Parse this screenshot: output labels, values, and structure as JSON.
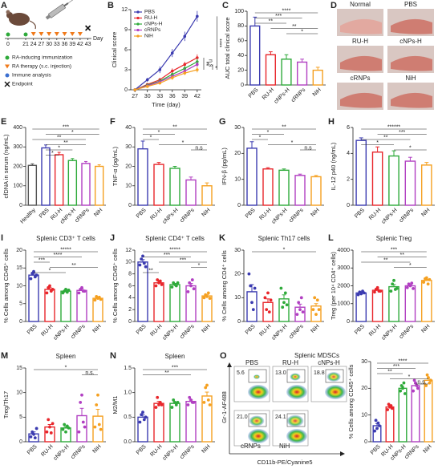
{
  "timeline": {
    "panel": "A",
    "days": [
      0,
      21,
      24,
      27,
      30,
      33,
      36,
      39,
      42,
      43
    ],
    "day_label": "Day",
    "legend": [
      "RA-inducing immunization",
      "RA therapy (s.c. injection)",
      "Immune analysis",
      "Endpoint"
    ]
  },
  "photos": {
    "panel": "D",
    "labels": [
      "Normal",
      "PBS",
      "RU-H",
      "cNPs-H",
      "cRNPs",
      "NiH"
    ]
  },
  "flow": {
    "panel": "O",
    "title": "Splenic MDSCs",
    "ylabel": "Gr-1-AF488",
    "xlabel": "CD11b-PE/Cyanine5",
    "groups": [
      {
        "name": "PBS",
        "color": "#3b3bb0"
      },
      {
        "name": "RU-H",
        "color": "#e8262b"
      },
      {
        "name": "cNPs-H",
        "color": "#2eaa3a"
      },
      {
        "name": "cRNPs",
        "color": "#b13fc2"
      },
      {
        "name": "NiH",
        "color": "#f5a020"
      }
    ],
    "values": [
      5.6,
      13.0,
      18.8,
      21.0,
      24.1
    ],
    "value_labels": [
      "5.6",
      "13.0",
      "18.8",
      "21.0",
      "24.1"
    ]
  },
  "chart_data": [
    {
      "type": "line",
      "panel": "B",
      "ylabel": "Clinical score",
      "xlabel": "Time (day)",
      "x": [
        27,
        30,
        33,
        36,
        39,
        42
      ],
      "xlim": [
        26,
        43
      ],
      "xticks": [
        27,
        30,
        33,
        36,
        39,
        42
      ],
      "ylim": [
        0,
        12
      ],
      "yticks": [
        0,
        3,
        6,
        9,
        12
      ],
      "series": [
        {
          "name": "PBS",
          "color": "#3b3bb0",
          "values": [
            0,
            1.5,
            3,
            5.5,
            8,
            11
          ],
          "errors": [
            0,
            0.3,
            0.5,
            0.6,
            0.7,
            0.8
          ]
        },
        {
          "name": "RU-H",
          "color": "#e8262b",
          "values": [
            0,
            0.8,
            1.5,
            2.8,
            3.8,
            4.8
          ],
          "errors": [
            0,
            0.2,
            0.3,
            0.4,
            0.4,
            0.5
          ]
        },
        {
          "name": "cNPs-H",
          "color": "#2eaa3a",
          "values": [
            0,
            0.7,
            1.3,
            2.3,
            3.2,
            4.2
          ],
          "errors": [
            0,
            0.2,
            0.3,
            0.3,
            0.4,
            0.5
          ]
        },
        {
          "name": "cRNPs",
          "color": "#b13fc2",
          "values": [
            0,
            0.6,
            1.2,
            2,
            2.8,
            3.8
          ],
          "errors": [
            0,
            0.2,
            0.2,
            0.3,
            0.4,
            0.4
          ]
        },
        {
          "name": "NiH",
          "color": "#f5a020",
          "values": [
            0,
            0.5,
            1,
            1.8,
            2.5,
            3
          ],
          "errors": [
            0,
            0.2,
            0.2,
            0.3,
            0.3,
            0.4
          ]
        }
      ],
      "annotations": [
        "**",
        "n.s",
        "*",
        "****"
      ]
    },
    {
      "type": "bar",
      "panel": "C",
      "ylabel": "AUC total clinical score",
      "categories": [
        "PBS",
        "RU-H",
        "cNPs-H",
        "cRNPs",
        "NiH"
      ],
      "colors": [
        "#3b3bb0",
        "#e8262b",
        "#2eaa3a",
        "#b13fc2",
        "#f5a020"
      ],
      "values": [
        80,
        41,
        35,
        31,
        20
      ],
      "errors": [
        12,
        4,
        6,
        4,
        4
      ],
      "ylim": [
        0,
        100
      ],
      "yticks": [
        0,
        20,
        40,
        60,
        80,
        100
      ],
      "annotations": [
        "****",
        "***",
        "**",
        "**",
        "*"
      ]
    },
    {
      "type": "bar",
      "panel": "E",
      "ylabel": "cfDNA in serum (ng/mL)",
      "categories": [
        "Healthy",
        "PBS",
        "RU-H",
        "cNPs-H",
        "cRNPs",
        "NiH"
      ],
      "colors": [
        "#555555",
        "#3b3bb0",
        "#e8262b",
        "#2eaa3a",
        "#b13fc2",
        "#f5a020"
      ],
      "values": [
        205,
        295,
        260,
        230,
        215,
        200
      ],
      "errors": [
        8,
        15,
        12,
        10,
        10,
        8
      ],
      "ylim": [
        0,
        400
      ],
      "yticks": [
        0,
        100,
        200,
        300,
        400
      ],
      "annotations": [
        "***",
        "*",
        "**",
        "**",
        "*",
        "*"
      ]
    },
    {
      "type": "bar",
      "panel": "F",
      "ylabel": "TNF-α (pg/mL)",
      "categories": [
        "PBS",
        "RU-H",
        "cNPs-H",
        "cRNPs",
        "NiH"
      ],
      "colors": [
        "#3b3bb0",
        "#e8262b",
        "#2eaa3a",
        "#b13fc2",
        "#f5a020"
      ],
      "values": [
        29,
        21,
        19,
        13,
        10
      ],
      "errors": [
        4,
        1,
        1,
        1.5,
        1.5
      ],
      "ylim": [
        0,
        40
      ],
      "yticks": [
        0,
        10,
        20,
        30,
        40
      ],
      "annotations": [
        "**",
        "*",
        "*",
        "*",
        "n.s"
      ]
    },
    {
      "type": "bar",
      "panel": "G",
      "ylabel": "IFN-β (pg/mL)",
      "categories": [
        "PBS",
        "RU-H",
        "cNPs-H",
        "cRNPs",
        "NiH"
      ],
      "colors": [
        "#3b3bb0",
        "#e8262b",
        "#2eaa3a",
        "#b13fc2",
        "#f5a020"
      ],
      "values": [
        22,
        14,
        13.5,
        11.5,
        11
      ],
      "errors": [
        2.5,
        0.5,
        0.5,
        0.5,
        0.5
      ],
      "ylim": [
        0,
        30
      ],
      "yticks": [
        0,
        10,
        20,
        30
      ],
      "annotations": [
        "**",
        "*",
        "*",
        "*",
        "n.s"
      ]
    },
    {
      "type": "bar",
      "panel": "H",
      "ylabel": "IL-12 p40 (ng/mL)",
      "categories": [
        "PBS",
        "RU-H",
        "cNPs-H",
        "cRNPs",
        "NiH"
      ],
      "colors": [
        "#3b3bb0",
        "#e8262b",
        "#2eaa3a",
        "#b13fc2",
        "#f5a020"
      ],
      "values": [
        5,
        4.1,
        3.8,
        3.4,
        3.1
      ],
      "errors": [
        0.2,
        0.4,
        0.4,
        0.3,
        0.2
      ],
      "ylim": [
        0,
        6
      ],
      "yticks": [
        0,
        2,
        4,
        6
      ],
      "annotations": [
        "******",
        "***",
        "**",
        "*",
        "*"
      ]
    },
    {
      "type": "bar",
      "panel": "I",
      "title": "Splenic CD3⁺ T cells",
      "ylabel": "% Cells among CD45⁺ cells",
      "categories": [
        "PBS",
        "RU-H",
        "cNPs-H",
        "cRNPs",
        "NiH"
      ],
      "colors": [
        "#3b3bb0",
        "#e8262b",
        "#2eaa3a",
        "#b13fc2",
        "#f5a020"
      ],
      "values": [
        13,
        9,
        8.5,
        8.7,
        6.5
      ],
      "errors": [
        0.5,
        0.5,
        0.3,
        0.4,
        0.3
      ],
      "points": [
        [
          12,
          13.5,
          14,
          12.5,
          13
        ],
        [
          8,
          9.5,
          10,
          8.5,
          9
        ],
        [
          8,
          8.5,
          9,
          8.2,
          8.8
        ],
        [
          8,
          9,
          9.5,
          8.5,
          8.5
        ],
        [
          6,
          7,
          6.5,
          6.8,
          6.2
        ]
      ],
      "ylim": [
        0,
        20
      ],
      "yticks": [
        0,
        5,
        10,
        15,
        20
      ],
      "annotations": [
        "*****",
        "****",
        "***",
        "**",
        "*"
      ]
    },
    {
      "type": "bar",
      "panel": "J",
      "title": "Splenic CD4⁺ T cells",
      "ylabel": "% Cells among CD45⁺ cells",
      "categories": [
        "PBS",
        "RU-H",
        "cNPs-H",
        "cRNPs",
        "NiH"
      ],
      "colors": [
        "#3b3bb0",
        "#e8262b",
        "#2eaa3a",
        "#b13fc2",
        "#f5a020"
      ],
      "values": [
        10,
        6.5,
        6.2,
        6,
        4.3
      ],
      "errors": [
        0.4,
        0.3,
        0.2,
        0.4,
        0.2
      ],
      "points": [
        [
          9.5,
          10.5,
          11,
          9.8,
          9.2
        ],
        [
          6,
          7,
          6.5,
          6.8,
          6.2
        ],
        [
          5.8,
          6.5,
          6.2,
          6,
          6.5
        ],
        [
          5,
          6.5,
          6,
          7,
          5.5
        ],
        [
          4,
          4.5,
          4.2,
          4.8,
          3.9
        ]
      ],
      "ylim": [
        0,
        12
      ],
      "yticks": [
        0,
        2,
        4,
        6,
        8,
        10,
        12
      ],
      "annotations": [
        "*****",
        "***",
        "***",
        "*",
        "**"
      ]
    },
    {
      "type": "bar",
      "panel": "K",
      "title": "Splenic Th17 cells",
      "ylabel": "% Cells among CD4⁺ cells",
      "categories": [
        "PBS",
        "RU-H",
        "cNPs-H",
        "cRNPs",
        "NiH"
      ],
      "colors": [
        "#3b3bb0",
        "#e8262b",
        "#2eaa3a",
        "#b13fc2",
        "#f5a020"
      ],
      "values": [
        12.5,
        8,
        9.5,
        6,
        6.5
      ],
      "errors": [
        3,
        1.5,
        1.7,
        1.3,
        1
      ],
      "points": [
        [
          20,
          15,
          8,
          5,
          14
        ],
        [
          10,
          5,
          12,
          4,
          9
        ],
        [
          14,
          6,
          8,
          12,
          7
        ],
        [
          3,
          8,
          5,
          10,
          4
        ],
        [
          5,
          10,
          3,
          9,
          5
        ]
      ],
      "ylim": [
        0,
        30
      ],
      "yticks": [
        0,
        10,
        20,
        30
      ],
      "annotations": [
        "*"
      ]
    },
    {
      "type": "bar",
      "panel": "L",
      "title": "Splenic Treg",
      "ylabel": "Treg (per 10⁴ CD4⁺ cells)",
      "categories": [
        "PBS",
        "RU-H",
        "cNPs-H",
        "cRNPs",
        "NiH"
      ],
      "colors": [
        "#3b3bb0",
        "#e8262b",
        "#2eaa3a",
        "#b13fc2",
        "#f5a020"
      ],
      "values": [
        1600,
        1750,
        1950,
        2000,
        2300
      ],
      "errors": [
        60,
        50,
        120,
        60,
        60
      ],
      "points": [
        [
          1500,
          1650,
          1550,
          1700,
          1600
        ],
        [
          1650,
          1800,
          1900,
          1700,
          1700
        ],
        [
          1700,
          2100,
          2300,
          1800,
          1850
        ],
        [
          1900,
          2100,
          2000,
          2150,
          1850
        ],
        [
          2200,
          2400,
          2450,
          2100,
          2350
        ]
      ],
      "ylim": [
        0,
        4000
      ],
      "yticks": [
        0,
        1000,
        2000,
        3000,
        4000
      ],
      "annotations": [
        "***",
        "**",
        "**",
        "*"
      ]
    },
    {
      "type": "bar",
      "panel": "M",
      "title": "Spleen",
      "ylabel": "Treg/Th17",
      "categories": [
        "PBS",
        "RU-H",
        "cNPs-H",
        "cRNPs",
        "NiH"
      ],
      "colors": [
        "#3b3bb0",
        "#e8262b",
        "#2eaa3a",
        "#b13fc2",
        "#f5a020"
      ],
      "values": [
        1.6,
        3,
        2.8,
        5.3,
        5.2
      ],
      "errors": [
        0.4,
        0.5,
        0.3,
        1.5,
        1.4
      ],
      "points": [
        [
          1,
          2,
          1.5,
          0.8,
          2.7
        ],
        [
          2,
          4.5,
          3,
          1.8,
          3.7
        ],
        [
          2.5,
          3.5,
          2,
          3.2,
          2.8
        ],
        [
          2,
          8,
          9.5,
          4,
          3
        ],
        [
          3,
          7.5,
          9.5,
          3.5,
          2.5
        ]
      ],
      "ylim": [
        0,
        15
      ],
      "yticks": [
        0,
        5,
        10,
        15
      ],
      "annotations": [
        "*",
        "n.s."
      ]
    },
    {
      "type": "bar",
      "panel": "N",
      "title": "Spleen",
      "ylabel": "M2/M1",
      "categories": [
        "PBS",
        "RU-H",
        "cNPs-H",
        "cRNPs",
        "NiH"
      ],
      "colors": [
        "#3b3bb0",
        "#e8262b",
        "#2eaa3a",
        "#b13fc2",
        "#f5a020"
      ],
      "values": [
        0.5,
        0.78,
        0.78,
        0.82,
        0.93
      ],
      "errors": [
        0.05,
        0.04,
        0.03,
        0.03,
        0.08
      ],
      "points": [
        [
          0.4,
          0.55,
          0.6,
          0.45,
          0.5
        ],
        [
          0.7,
          0.9,
          0.75,
          0.8,
          0.75
        ],
        [
          0.7,
          0.85,
          0.8,
          0.75,
          0.8
        ],
        [
          0.75,
          0.9,
          0.85,
          0.8,
          0.8
        ],
        [
          0.8,
          1.1,
          1.15,
          0.85,
          0.75
        ]
      ],
      "ylim": [
        0,
        1.5
      ],
      "yticks": [
        {
          "value": 0,
          "label": "0.0"
        },
        0.5,
        {
          "value": 1,
          "label": "1.0"
        },
        1.5
      ],
      "annotations": [
        "***",
        "**"
      ]
    },
    {
      "type": "bar",
      "ylabel": "% Cells among CD45⁺ cells",
      "categories": [
        "PBS",
        "RU-H",
        "cNPs-H",
        "cRNPs",
        "NiH"
      ],
      "colors": [
        "#3b3bb0",
        "#e8262b",
        "#2eaa3a",
        "#b13fc2",
        "#f5a020"
      ],
      "values": [
        6,
        13,
        20,
        21,
        23
      ],
      "errors": [
        0.8,
        0.4,
        0.7,
        0.7,
        0.7
      ],
      "points": [
        [
          4,
          8,
          5,
          7,
          6
        ],
        [
          12,
          14,
          13,
          13.5,
          12.5
        ],
        [
          19,
          21,
          20,
          22,
          18
        ],
        [
          19,
          23,
          22,
          21,
          20
        ],
        [
          21,
          25,
          24,
          22,
          23
        ]
      ],
      "ylim": [
        0,
        30
      ],
      "yticks": [
        0,
        10,
        20,
        30
      ],
      "annotations": [
        "****",
        "***",
        "**",
        "*",
        "n.s."
      ]
    }
  ]
}
